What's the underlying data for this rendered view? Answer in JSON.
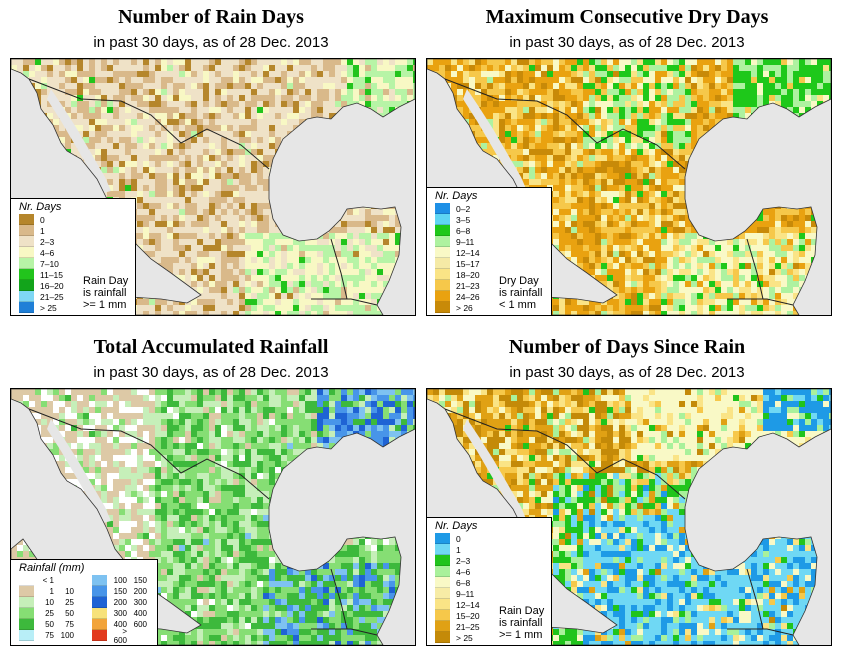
{
  "panels": [
    {
      "id": "rain-days",
      "title": "Number of Rain Days",
      "subtitle": "in past 30 days, as of  28 Dec. 2013",
      "legend_title": "Nr. Days",
      "legend": [
        {
          "label": "0",
          "color": "#b5862b"
        },
        {
          "label": "1",
          "color": "#d9b98a"
        },
        {
          "label": "2–3",
          "color": "#efe2c7"
        },
        {
          "label": "4–6",
          "color": "#f8f8c4"
        },
        {
          "label": "7–10",
          "color": "#b7f4a6"
        },
        {
          "label": "11–15",
          "color": "#22c41c"
        },
        {
          "label": "16–20",
          "color": "#12a41b"
        },
        {
          "label": "21–25",
          "color": "#7fd7f5"
        },
        {
          "label": "> 25",
          "color": "#1f7fd7"
        }
      ],
      "note": [
        "Rain Day",
        "is rainfall",
        ">= 1 mm"
      ]
    },
    {
      "id": "dry-days",
      "title": "Maximum Consecutive Dry Days",
      "subtitle": "in past 30 days, as of  28 Dec. 2013",
      "legend_title": "Nr. Days",
      "legend": [
        {
          "label": "0–2",
          "color": "#1e90e6"
        },
        {
          "label": "3–5",
          "color": "#5fd6f3"
        },
        {
          "label": "6–8",
          "color": "#1ec81a"
        },
        {
          "label": "9–11",
          "color": "#aef2a0"
        },
        {
          "label": "12–14",
          "color": "#f9f9c6"
        },
        {
          "label": "15–17",
          "color": "#f5eaa6"
        },
        {
          "label": "18–20",
          "color": "#fae486"
        },
        {
          "label": "21–23",
          "color": "#f6c84a"
        },
        {
          "label": "24–26",
          "color": "#e9a210"
        },
        {
          "label": "> 26",
          "color": "#c88a08"
        }
      ],
      "note": [
        "Dry Day",
        "is rainfall",
        "< 1 mm"
      ]
    },
    {
      "id": "total-rainfall",
      "title": "Total Accumulated Rainfall",
      "subtitle": "in past 30 days, as of  28 Dec. 2013",
      "legend_title": "Rainfall (mm)",
      "legend_left": [
        {
          "lo": "< 1",
          "hi": "",
          "color": "#ffffff"
        },
        {
          "lo": "1",
          "hi": "10",
          "color": "#ddc9a6"
        },
        {
          "lo": "10",
          "hi": "25",
          "color": "#c6efb9"
        },
        {
          "lo": "25",
          "hi": "50",
          "color": "#86de74"
        },
        {
          "lo": "50",
          "hi": "75",
          "color": "#3db93c"
        },
        {
          "lo": "75",
          "hi": "100",
          "color": "#b8eef7"
        }
      ],
      "legend_right": [
        {
          "lo": "100",
          "hi": "150",
          "color": "#7ec2f1"
        },
        {
          "lo": "150",
          "hi": "200",
          "color": "#4895e9"
        },
        {
          "lo": "200",
          "hi": "300",
          "color": "#1f63d4"
        },
        {
          "lo": "300",
          "hi": "400",
          "color": "#f7e27a"
        },
        {
          "lo": "400",
          "hi": "600",
          "color": "#f2a43a"
        },
        {
          "lo": "> 600",
          "hi": "",
          "color": "#e23a1e"
        }
      ]
    },
    {
      "id": "days-since-rain",
      "title": "Number of Days Since Rain",
      "subtitle": "in past 30 days, as of  28 Dec. 2013",
      "legend_title": "Nr. Days",
      "legend": [
        {
          "label": "0",
          "color": "#1e9ae6"
        },
        {
          "label": "1",
          "color": "#6fd8f4"
        },
        {
          "label": "2–3",
          "color": "#20c41c"
        },
        {
          "label": "4–6",
          "color": "#a9f19b"
        },
        {
          "label": "6–8",
          "color": "#f9f9c6"
        },
        {
          "label": "9–11",
          "color": "#f7eca6"
        },
        {
          "label": "12–14",
          "color": "#fae486"
        },
        {
          "label": "15–20",
          "color": "#f6c84a"
        },
        {
          "label": "21–25",
          "color": "#e0a114"
        },
        {
          "label": "> 25",
          "color": "#c48a08"
        }
      ],
      "note": [
        "Rain Day",
        "is rainfall",
        ">= 1 mm"
      ]
    }
  ]
}
